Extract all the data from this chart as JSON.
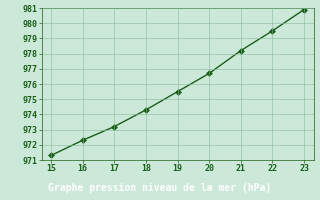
{
  "x": [
    15,
    16,
    17,
    18,
    19,
    20,
    21,
    22,
    23
  ],
  "y": [
    971.3,
    972.3,
    973.2,
    974.3,
    975.5,
    976.7,
    978.2,
    979.5,
    980.9
  ],
  "xlim": [
    14.7,
    23.3
  ],
  "ylim": [
    971,
    981
  ],
  "xticks": [
    15,
    16,
    17,
    18,
    19,
    20,
    21,
    22,
    23
  ],
  "yticks": [
    971,
    972,
    973,
    974,
    975,
    976,
    977,
    978,
    979,
    980,
    981
  ],
  "line_color": "#1a5e1a",
  "marker_color": "#1a5e1a",
  "bg_color": "#cce8d8",
  "plot_bg_color": "#cce8d8",
  "grid_color": "#88bb99",
  "bottom_bar_color": "#1a6e2a",
  "xlabel": "Graphe pression niveau de la mer (hPa)",
  "xlabel_color": "#ffffff",
  "tick_color": "#1a5e1a",
  "axis_color": "#1a5e1a",
  "marker_size": 3,
  "line_width": 1.0,
  "xlabel_fontsize": 7,
  "tick_fontsize": 6
}
